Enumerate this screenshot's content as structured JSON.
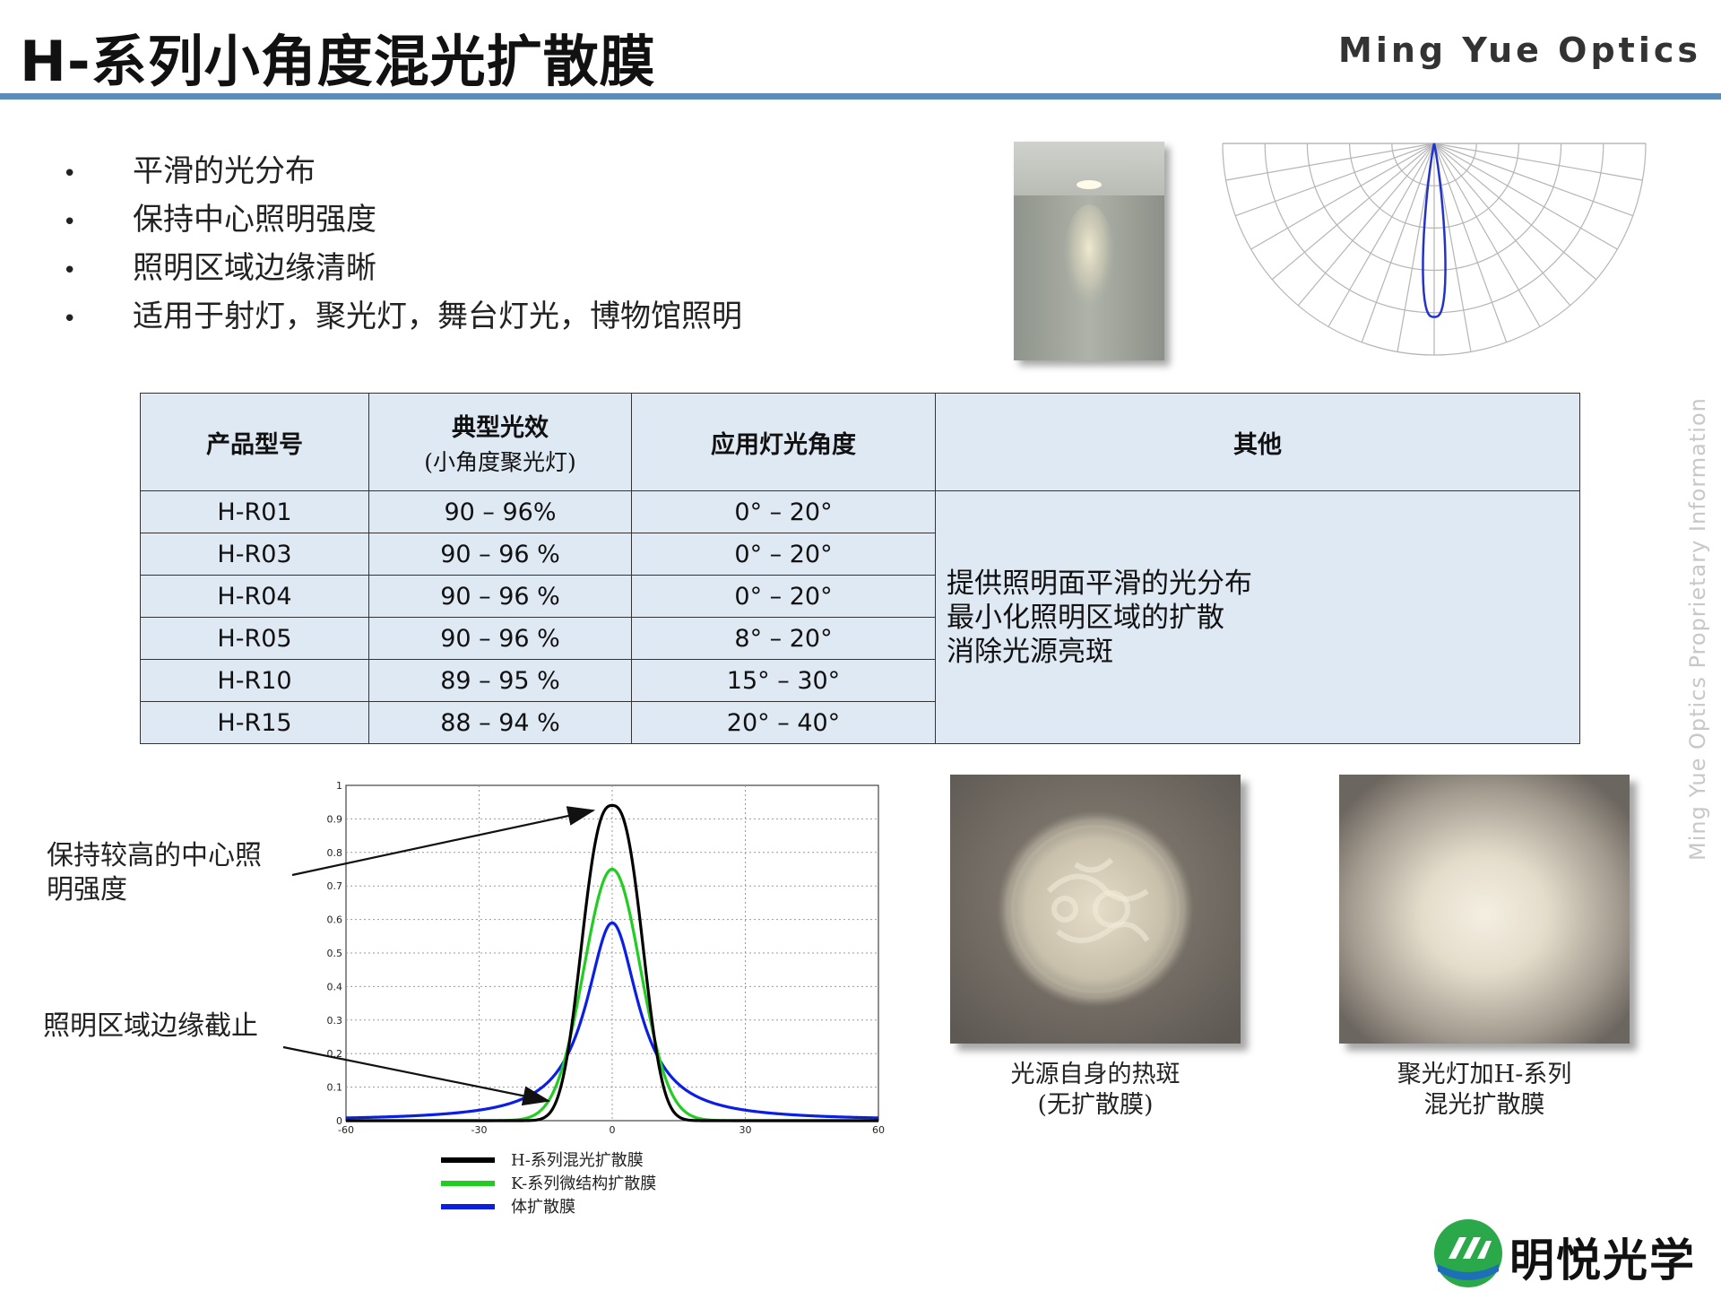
{
  "header": {
    "title": "H-系列小角度混光扩散膜",
    "brand": "Ming Yue Optics"
  },
  "bullets": [
    "平滑的光分布",
    "保持中心照明强度",
    "照明区域边缘清晰",
    "适用于射灯，聚光灯，舞台灯光，博物馆照明"
  ],
  "bullet_symbol": "•",
  "table": {
    "headers": {
      "model": "产品型号",
      "efficiency": "典型光效",
      "efficiency_sub": "(小角度聚光灯)",
      "angle": "应用灯光角度",
      "other": "其他"
    },
    "rows": [
      {
        "model": "H-R01",
        "efficiency": "90 – 96%",
        "angle": "0° – 20°"
      },
      {
        "model": "H-R03",
        "efficiency": "90 – 96 %",
        "angle": "0° – 20°"
      },
      {
        "model": "H-R04",
        "efficiency": "90 – 96 %",
        "angle": "0° – 20°"
      },
      {
        "model": "H-R05",
        "efficiency": "90 – 96 %",
        "angle": "8° – 20°"
      },
      {
        "model": "H-R10",
        "efficiency": "89 – 95 %",
        "angle": "15° – 30°"
      },
      {
        "model": "H-R15",
        "efficiency": "88 – 94 %",
        "angle": "20° – 40°"
      }
    ],
    "other_lines": [
      "提供照明面平滑的光分布",
      "最小化照明区域的扩散",
      "消除光源亮斑"
    ]
  },
  "annotations": {
    "center": [
      "保持较高的中心照",
      "明强度"
    ],
    "edge": "照明区域边缘截止"
  },
  "chart_data": {
    "type": "line",
    "x_range": [
      -60,
      60
    ],
    "y_range": [
      0,
      1
    ],
    "x_ticks": [
      "-60",
      "-30",
      "0",
      "30",
      "60"
    ],
    "y_ticks": [
      "0",
      "0.1",
      "0.2",
      "0.3",
      "0.4",
      "0.5",
      "0.6",
      "0.7",
      "0.8",
      "0.9",
      "1"
    ],
    "grid": true,
    "legend_position": "bottom",
    "series": [
      {
        "name": "H-系列混光扩散膜",
        "color": "#000000",
        "peak": 0.94,
        "shape": "supergaussian",
        "width": 8.5
      },
      {
        "name": "K-系列微结构扩散膜",
        "color": "#22cc22",
        "peak": 0.75,
        "shape": "gaussian",
        "width": 9
      },
      {
        "name": "体扩散膜",
        "color": "#0a1ee6",
        "peak": 0.59,
        "shape": "lorentzian",
        "width": 9
      }
    ]
  },
  "photos": {
    "left_caption": [
      "光源自身的热斑",
      "(无扩散膜)"
    ],
    "right_caption": [
      "聚光灯加H-系列",
      "混光扩散膜"
    ]
  },
  "watermark": "Ming Yue Optics Proprietary Information",
  "logo": {
    "text": "明悦光学",
    "colors": {
      "green": "#2aa84a",
      "blue": "#1d6fb8"
    }
  },
  "colors": {
    "rule": "#5b8db8",
    "table_bg": "#dfe9f3",
    "polar_curve": "#2233cc"
  }
}
